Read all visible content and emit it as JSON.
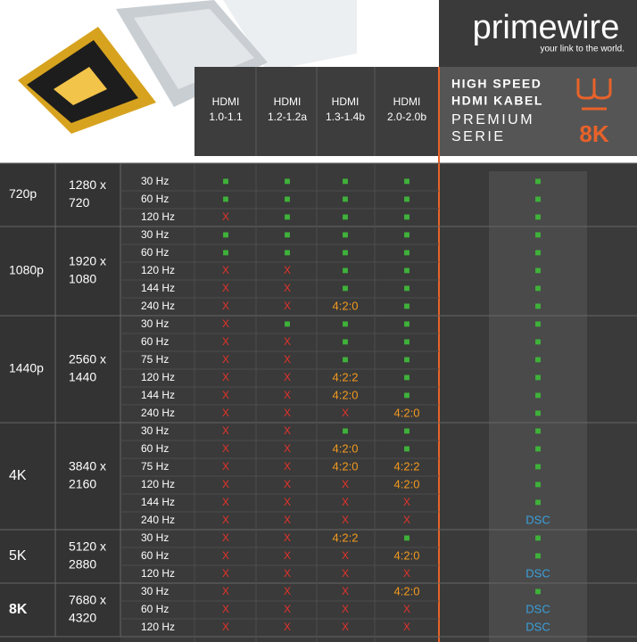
{
  "brand": {
    "name": "primewire",
    "tagline": "your link to the world."
  },
  "table": {
    "columns": [
      [
        "HDMI",
        "1.0-1.1"
      ],
      [
        "HDMI",
        "1.2-1.2a"
      ],
      [
        "HDMI",
        "1.3-1.4b"
      ],
      [
        "HDMI",
        "2.0-2.0b"
      ]
    ],
    "product": {
      "lines": [
        "HIGH SPEED",
        "HDMI KABEL"
      ],
      "series": [
        "PREMIUM",
        "SERIE"
      ],
      "badge": "8K"
    },
    "groups": [
      {
        "resolution": "720p",
        "pixels": [
          "1280 x",
          "720"
        ],
        "rows": [
          {
            "rate": "30 Hz",
            "cells": [
              "■",
              "■",
              "■",
              "■",
              "■"
            ]
          },
          {
            "rate": "60 Hz",
            "cells": [
              "■",
              "■",
              "■",
              "■",
              "■"
            ]
          },
          {
            "rate": "120 Hz",
            "cells": [
              "X",
              "■",
              "■",
              "■",
              "■"
            ]
          }
        ]
      },
      {
        "resolution": "1080p",
        "pixels": [
          "1920 x",
          "1080"
        ],
        "rows": [
          {
            "rate": "30 Hz",
            "cells": [
              "■",
              "■",
              "■",
              "■",
              "■"
            ]
          },
          {
            "rate": "60 Hz",
            "cells": [
              "■",
              "■",
              "■",
              "■",
              "■"
            ]
          },
          {
            "rate": "120 Hz",
            "cells": [
              "X",
              "X",
              "■",
              "■",
              "■"
            ]
          },
          {
            "rate": "144 Hz",
            "cells": [
              "X",
              "X",
              "■",
              "■",
              "■"
            ]
          },
          {
            "rate": "240 Hz",
            "cells": [
              "X",
              "X",
              "4:2:0",
              "■",
              "■"
            ]
          }
        ]
      },
      {
        "resolution": "1440p",
        "pixels": [
          "2560 x",
          "1440"
        ],
        "rows": [
          {
            "rate": "30 Hz",
            "cells": [
              "X",
              "■",
              "■",
              "■",
              "■"
            ]
          },
          {
            "rate": "60 Hz",
            "cells": [
              "X",
              "X",
              "■",
              "■",
              "■"
            ]
          },
          {
            "rate": "75 Hz",
            "cells": [
              "X",
              "X",
              "■",
              "■",
              "■"
            ]
          },
          {
            "rate": "120 Hz",
            "cells": [
              "X",
              "X",
              "4:2:2",
              "■",
              "■"
            ]
          },
          {
            "rate": "144 Hz",
            "cells": [
              "X",
              "X",
              "4:2:0",
              "■",
              "■"
            ]
          },
          {
            "rate": "240 Hz",
            "cells": [
              "X",
              "X",
              "X",
              "4:2:0",
              "■"
            ]
          }
        ]
      },
      {
        "resolution": "4K",
        "pixels": [
          "3840 x",
          "2160"
        ],
        "rows": [
          {
            "rate": "30 Hz",
            "cells": [
              "X",
              "X",
              "■",
              "■",
              "■"
            ]
          },
          {
            "rate": "60 Hz",
            "cells": [
              "X",
              "X",
              "4:2:0",
              "■",
              "■"
            ]
          },
          {
            "rate": "75 Hz",
            "cells": [
              "X",
              "X",
              "4:2:0",
              "4:2:2",
              "■"
            ]
          },
          {
            "rate": "120 Hz",
            "cells": [
              "X",
              "X",
              "X",
              "4:2:0",
              "■"
            ]
          },
          {
            "rate": "144 Hz",
            "cells": [
              "X",
              "X",
              "X",
              "X",
              "■"
            ]
          },
          {
            "rate": "240 Hz",
            "cells": [
              "X",
              "X",
              "X",
              "X",
              "DSC"
            ]
          }
        ]
      },
      {
        "resolution": "5K",
        "pixels": [
          "5120 x",
          "2880"
        ],
        "rows": [
          {
            "rate": "30 Hz",
            "cells": [
              "X",
              "X",
              "4:2:2",
              "■",
              "■"
            ]
          },
          {
            "rate": "60 Hz",
            "cells": [
              "X",
              "X",
              "X",
              "4:2:0",
              "■"
            ]
          },
          {
            "rate": "120 Hz",
            "cells": [
              "X",
              "X",
              "X",
              "X",
              "DSC"
            ]
          }
        ]
      },
      {
        "resolution": "8K",
        "pixels": [
          "7680 x",
          "4320"
        ],
        "rows": [
          {
            "rate": "30 Hz",
            "cells": [
              "X",
              "X",
              "X",
              "4:2:0",
              "■"
            ]
          },
          {
            "rate": "60 Hz",
            "cells": [
              "X",
              "X",
              "X",
              "X",
              "DSC"
            ]
          },
          {
            "rate": "120 Hz",
            "cells": [
              "X",
              "X",
              "X",
              "X",
              "DSC"
            ]
          }
        ]
      }
    ],
    "styles": {
      "■": "#3fb23a",
      "X": "#e5332a",
      "4:2:0": "#f39a1e",
      "4:2:2": "#f39a1e",
      "DSC": "#3aa0dc"
    }
  }
}
